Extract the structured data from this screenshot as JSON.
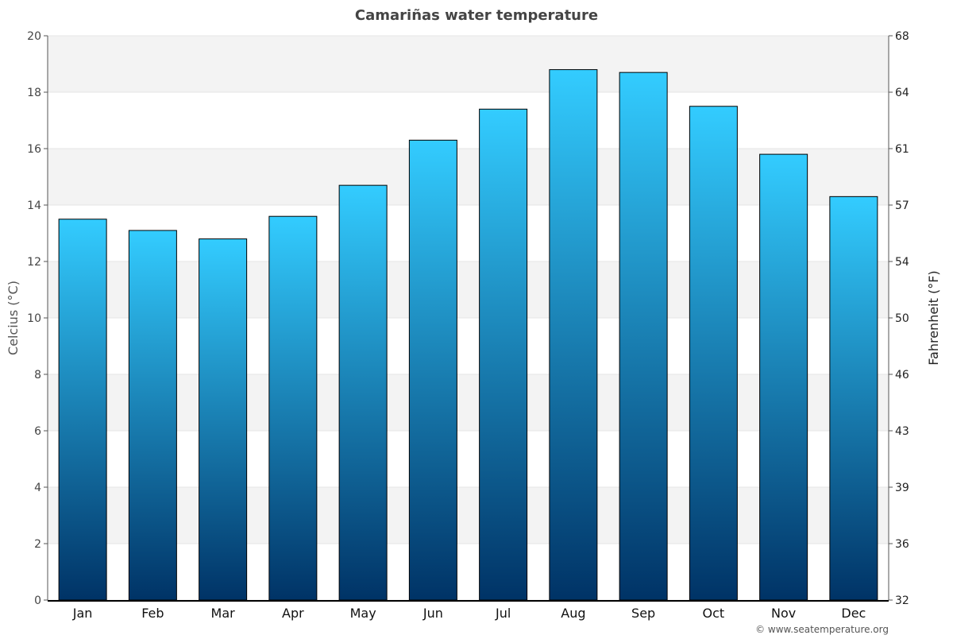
{
  "chart_data": {
    "type": "bar",
    "title": "Camariñas water temperature",
    "categories": [
      "Jan",
      "Feb",
      "Mar",
      "Apr",
      "May",
      "Jun",
      "Jul",
      "Aug",
      "Sep",
      "Oct",
      "Nov",
      "Dec"
    ],
    "values": [
      13.5,
      13.1,
      12.8,
      13.6,
      14.7,
      16.3,
      17.4,
      18.8,
      18.7,
      17.5,
      15.8,
      14.3
    ],
    "ylabel": "Celcius (°C)",
    "y2label": "Fahrenheit (°F)",
    "ylim": [
      0,
      20
    ],
    "yticks": [
      0,
      2,
      4,
      6,
      8,
      10,
      12,
      14,
      16,
      18,
      20
    ],
    "y2ticks": [
      32,
      36,
      39,
      43,
      46,
      50,
      54,
      57,
      61,
      64,
      68
    ],
    "grid": true,
    "legend": "none",
    "colors": {
      "bar_top": "#33ccff",
      "bar_bottom": "#003366",
      "band": "#f3f3f3"
    }
  },
  "credit": "© www.seatemperature.org"
}
